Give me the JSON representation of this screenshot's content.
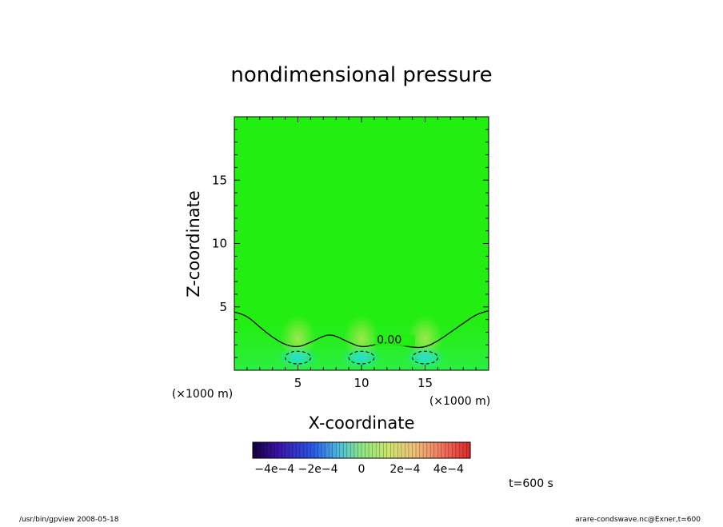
{
  "chart_data": {
    "type": "heatmap",
    "title": "nondimensional pressure",
    "xlabel": "X-coordinate",
    "ylabel": "Z-coordinate",
    "x_unit_left": "(×1000 m)",
    "x_unit_right": "(×1000 m)",
    "xlim": [
      0,
      20
    ],
    "ylim": [
      0,
      20
    ],
    "xticks": [
      5,
      10,
      15
    ],
    "yticks": [
      5,
      10,
      15
    ],
    "x_tick_labels": [
      "5",
      "10",
      "15"
    ],
    "y_tick_labels": [
      "5",
      "10",
      "15"
    ],
    "background_color": "#22ee11",
    "contour_zero": {
      "label": "0.00",
      "label_x": 11.2,
      "label_y": 2.1,
      "points": [
        [
          0,
          4.6
        ],
        [
          1,
          4.3
        ],
        [
          2,
          3.4
        ],
        [
          3,
          2.6
        ],
        [
          4,
          2.0
        ],
        [
          5,
          1.8
        ],
        [
          6,
          2.2
        ],
        [
          7,
          2.7
        ],
        [
          7.5,
          2.8
        ],
        [
          8,
          2.7
        ],
        [
          9,
          2.2
        ],
        [
          10,
          1.8
        ],
        [
          11,
          2.0
        ],
        [
          12,
          2.2
        ],
        [
          13,
          2.0
        ],
        [
          14,
          1.8
        ],
        [
          15,
          1.8
        ],
        [
          16,
          2.3
        ],
        [
          17,
          3.0
        ],
        [
          18,
          3.7
        ],
        [
          19,
          4.4
        ],
        [
          20,
          4.7
        ]
      ]
    },
    "dashed_cells": [
      {
        "cx": 5.0,
        "cy": 1.0,
        "rx": 1.0,
        "ry": 0.5
      },
      {
        "cx": 10.0,
        "cy": 1.0,
        "rx": 1.0,
        "ry": 0.5
      },
      {
        "cx": 15.0,
        "cy": 1.0,
        "rx": 1.0,
        "ry": 0.5
      }
    ],
    "colorbar": {
      "min": -0.0005,
      "max": 0.0005,
      "tick_labels": [
        "−4e−4",
        "−2e−4",
        "0",
        "2e−4",
        "4e−4"
      ],
      "tick_values": [
        -0.0004,
        -0.0002,
        0,
        0.0002,
        0.0004
      ]
    }
  },
  "footer": {
    "time_label": "t=600 s",
    "left": "/usr/bin/gpview   2008-05-18",
    "right": "arare-condswave.nc@Exner,t=600"
  }
}
